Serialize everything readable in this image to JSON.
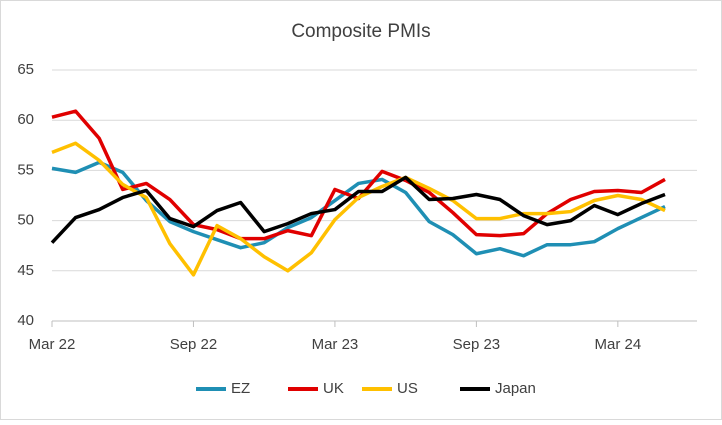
{
  "chart_data": {
    "type": "line",
    "title": "Composite PMIs",
    "categories": [
      "Mar 22",
      null,
      null,
      null,
      null,
      null,
      "Sep 22",
      null,
      null,
      null,
      null,
      null,
      "Mar 23",
      null,
      null,
      null,
      null,
      null,
      "Sep 23",
      null,
      null,
      null,
      null,
      null,
      "Mar 24",
      null,
      null
    ],
    "series": [
      {
        "name": "EZ",
        "color": "#1f8fb4",
        "values": [
          55.2,
          54.8,
          55.8,
          54.8,
          52.0,
          49.9,
          48.9,
          48.1,
          47.3,
          47.8,
          49.3,
          50.3,
          52.0,
          53.7,
          54.1,
          52.8,
          49.9,
          48.6,
          46.7,
          47.2,
          46.5,
          47.6,
          47.6,
          47.9,
          49.2,
          50.3,
          51.4
        ]
      },
      {
        "name": "UK",
        "color": "#e00000",
        "values": [
          60.3,
          60.9,
          58.2,
          53.1,
          53.7,
          52.1,
          49.6,
          49.1,
          48.2,
          48.2,
          49.0,
          48.5,
          53.1,
          52.2,
          54.9,
          54.0,
          52.8,
          50.8,
          48.6,
          48.5,
          48.7,
          50.7,
          52.1,
          52.9,
          53.0,
          52.8,
          54.1
        ]
      },
      {
        "name": "US",
        "color": "#ffc000",
        "values": [
          56.8,
          57.7,
          56.0,
          53.6,
          52.3,
          47.7,
          44.6,
          49.5,
          48.2,
          46.4,
          45.0,
          46.8,
          50.1,
          52.3,
          53.4,
          54.3,
          53.2,
          52.0,
          50.2,
          50.2,
          50.7,
          50.7,
          50.9,
          52.0,
          52.5,
          52.1,
          51.0
        ]
      },
      {
        "name": "Japan",
        "color": "#000000",
        "values": [
          47.8,
          50.3,
          51.1,
          52.3,
          53.0,
          50.2,
          49.4,
          51.0,
          51.8,
          48.9,
          49.7,
          50.7,
          51.1,
          52.9,
          52.9,
          54.3,
          52.1,
          52.2,
          52.6,
          52.1,
          50.5,
          49.6,
          50.0,
          51.5,
          50.6,
          51.7,
          52.6
        ]
      }
    ],
    "ylim": [
      40,
      65
    ],
    "yticks": [
      40,
      45,
      50,
      55,
      60,
      65
    ],
    "grid": true,
    "legend": "bottom"
  }
}
